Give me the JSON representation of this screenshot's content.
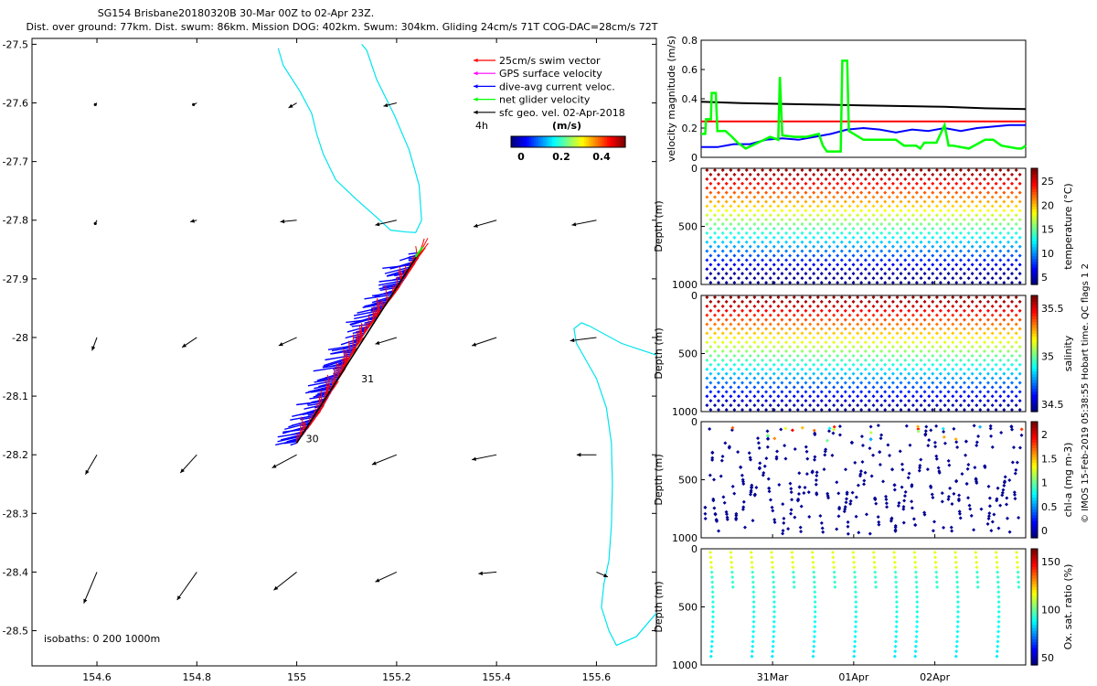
{
  "header": {
    "line1": "SG154 Brisbane20180320B 30-Mar 00Z to 02-Apr 23Z.",
    "line2": "Dist. over ground: 77km. Dist. swum: 86km. Mission DOG: 402km. Swum: 304km. Gliding 24cm/s 71T COG-DAC=28cm/s 72T"
  },
  "side_label": "© IMOS 15-Feb-2019 05:38:55 Hobart time. QC flags 1  2",
  "colors": {
    "swim": "#ff0000",
    "gps": "#ff00ff",
    "dac": "#0000ff",
    "net": "#00ff00",
    "geo": "#000000",
    "coast": "#00e5ee"
  },
  "chart_data": [
    {
      "type": "scatter",
      "name": "track-map",
      "xlim": [
        154.47,
        155.72
      ],
      "ylim": [
        -28.56,
        -27.49
      ],
      "xticks": [
        154.6,
        154.8,
        155,
        155.2,
        155.4,
        155.6
      ],
      "xtick_labels": [
        "154.6",
        "154.8",
        "155",
        "155.2",
        "155.4",
        "155.6"
      ],
      "yticks": [
        -27.5,
        -27.6,
        -27.7,
        -27.8,
        -27.9,
        -28,
        -28.1,
        -28.2,
        -28.3,
        -28.4,
        -28.5
      ],
      "ytick_labels": [
        "-27.5",
        "-27.6",
        "-27.7",
        "-27.8",
        "-27.9",
        "-28",
        "-28.1",
        "-28.2",
        "-28.3",
        "-28.4",
        "-28.5"
      ],
      "legend": [
        {
          "label": "25cm/s swim vector",
          "color": "#ff0000"
        },
        {
          "label": "GPS surface velocity",
          "color": "#ff00ff"
        },
        {
          "label": "dive-avg current veloc.",
          "color": "#0000ff"
        },
        {
          "label": "net glider velocity",
          "color": "#00ff00"
        },
        {
          "label": "sfc geo. vel. 02-Apr-2018",
          "color": "#000000"
        }
      ],
      "legend_extra": "4h",
      "colorbar": {
        "title": "(m/s)",
        "ticks": [
          "0",
          "0.2",
          "0.4"
        ]
      },
      "isobaths_label": "isobaths: 0   200  1000m",
      "track": {
        "start": [
          155.0,
          -28.18
        ],
        "end": [
          155.245,
          -27.855
        ],
        "start_label": "30",
        "mid_label": "31",
        "mid_point": [
          155.12,
          -28.07
        ]
      },
      "geo_vectors": [
        {
          "lon": 154.6,
          "lat": -27.6,
          "u": -0.01,
          "v": -0.01
        },
        {
          "lon": 154.8,
          "lat": -27.6,
          "u": -0.02,
          "v": -0.01
        },
        {
          "lon": 155.0,
          "lat": -27.6,
          "u": -0.05,
          "v": -0.03
        },
        {
          "lon": 155.2,
          "lat": -27.6,
          "u": -0.08,
          "v": -0.02
        },
        {
          "lon": 154.6,
          "lat": -27.8,
          "u": -0.01,
          "v": -0.02
        },
        {
          "lon": 154.8,
          "lat": -27.8,
          "u": -0.04,
          "v": -0.01
        },
        {
          "lon": 155.0,
          "lat": -27.8,
          "u": -0.1,
          "v": -0.01
        },
        {
          "lon": 155.2,
          "lat": -27.8,
          "u": -0.13,
          "v": -0.03
        },
        {
          "lon": 155.4,
          "lat": -27.8,
          "u": -0.14,
          "v": -0.04
        },
        {
          "lon": 155.6,
          "lat": -27.8,
          "u": -0.15,
          "v": -0.03
        },
        {
          "lon": 154.6,
          "lat": -28.0,
          "u": -0.03,
          "v": -0.08
        },
        {
          "lon": 154.8,
          "lat": -28.0,
          "u": -0.09,
          "v": -0.06
        },
        {
          "lon": 155.0,
          "lat": -28.0,
          "u": -0.11,
          "v": -0.05
        },
        {
          "lon": 155.2,
          "lat": -28.0,
          "u": -0.13,
          "v": -0.04
        },
        {
          "lon": 155.4,
          "lat": -28.0,
          "u": -0.15,
          "v": -0.05
        },
        {
          "lon": 155.6,
          "lat": -28.0,
          "u": -0.16,
          "v": -0.02
        },
        {
          "lon": 154.6,
          "lat": -28.2,
          "u": -0.07,
          "v": -0.12
        },
        {
          "lon": 154.8,
          "lat": -28.2,
          "u": -0.1,
          "v": -0.11
        },
        {
          "lon": 155.0,
          "lat": -28.2,
          "u": -0.15,
          "v": -0.08
        },
        {
          "lon": 155.2,
          "lat": -28.2,
          "u": -0.15,
          "v": -0.06
        },
        {
          "lon": 155.4,
          "lat": -28.2,
          "u": -0.15,
          "v": -0.03
        },
        {
          "lon": 155.6,
          "lat": -28.2,
          "u": -0.12,
          "v": 0.0
        },
        {
          "lon": 154.6,
          "lat": -28.4,
          "u": -0.08,
          "v": -0.19
        },
        {
          "lon": 154.8,
          "lat": -28.4,
          "u": -0.12,
          "v": -0.17
        },
        {
          "lon": 155.0,
          "lat": -28.4,
          "u": -0.14,
          "v": -0.11
        },
        {
          "lon": 155.2,
          "lat": -28.4,
          "u": -0.13,
          "v": -0.06
        },
        {
          "lon": 155.4,
          "lat": -28.4,
          "u": -0.11,
          "v": -0.01
        },
        {
          "lon": 155.6,
          "lat": -28.4,
          "u": 0.07,
          "v": -0.03
        }
      ],
      "coastlines": [
        [
          [
            154.963,
            -27.507
          ],
          [
            154.973,
            -27.536
          ],
          [
            155.007,
            -27.581
          ],
          [
            155.03,
            -27.618
          ],
          [
            155.04,
            -27.653
          ],
          [
            155.053,
            -27.687
          ],
          [
            155.078,
            -27.731
          ],
          [
            155.12,
            -27.765
          ],
          [
            155.16,
            -27.795
          ],
          [
            155.188,
            -27.817
          ],
          [
            155.218,
            -27.82
          ],
          [
            155.238,
            -27.821
          ],
          [
            155.25,
            -27.8
          ],
          [
            155.245,
            -27.74
          ],
          [
            155.225,
            -27.68
          ],
          [
            155.195,
            -27.62
          ],
          [
            155.16,
            -27.56
          ],
          [
            155.14,
            -27.51
          ],
          [
            155.13,
            -27.5
          ]
        ],
        [
          [
            155.72,
            -28.03
          ],
          [
            155.65,
            -28.01
          ],
          [
            155.585,
            -27.98
          ],
          [
            155.57,
            -27.975
          ],
          [
            155.555,
            -27.985
          ],
          [
            155.56,
            -28.01
          ],
          [
            155.58,
            -28.04
          ],
          [
            155.6,
            -28.07
          ],
          [
            155.62,
            -28.12
          ],
          [
            155.63,
            -28.18
          ],
          [
            155.632,
            -28.25
          ],
          [
            155.63,
            -28.32
          ],
          [
            155.625,
            -28.38
          ],
          [
            155.615,
            -28.42
          ],
          [
            155.61,
            -28.46
          ],
          [
            155.625,
            -28.5
          ],
          [
            155.64,
            -28.525
          ],
          [
            155.68,
            -28.51
          ],
          [
            155.72,
            -28.47
          ]
        ]
      ]
    },
    {
      "type": "line",
      "name": "velocity-magnitude",
      "ylabel": "velocity magnitude (m/s)",
      "ylim": [
        0,
        0.8
      ],
      "yticks": [
        0,
        0.2,
        0.4,
        0.6,
        0.8
      ],
      "ytick_labels": [
        "0",
        "0.2",
        "0.4",
        "0.6",
        "0.8"
      ],
      "xlim": [
        0,
        4
      ],
      "series": [
        {
          "name": "gliding speed",
          "color": "#ff0000",
          "x": [
            0,
            4
          ],
          "y": [
            0.245,
            0.245
          ]
        },
        {
          "name": "geostrophic",
          "color": "#000000",
          "x": [
            0,
            0.5,
            1,
            1.5,
            2,
            2.5,
            3,
            3.5,
            4
          ],
          "y": [
            0.38,
            0.37,
            0.365,
            0.36,
            0.355,
            0.35,
            0.345,
            0.335,
            0.33
          ]
        },
        {
          "name": "dive-avg current",
          "color": "#0000ff",
          "x": [
            0,
            0.2,
            0.4,
            0.6,
            0.8,
            1.0,
            1.2,
            1.4,
            1.6,
            1.8,
            2.0,
            2.2,
            2.4,
            2.6,
            2.8,
            3.0,
            3.2,
            3.4,
            3.6,
            3.8,
            4.0
          ],
          "y": [
            0.07,
            0.07,
            0.09,
            0.09,
            0.12,
            0.13,
            0.12,
            0.14,
            0.16,
            0.19,
            0.2,
            0.19,
            0.17,
            0.19,
            0.18,
            0.2,
            0.18,
            0.2,
            0.21,
            0.22,
            0.22
          ]
        },
        {
          "name": "net glider velocity",
          "color": "#00ff00",
          "x": [
            0,
            0.05,
            0.06,
            0.12,
            0.13,
            0.18,
            0.2,
            0.22,
            0.3,
            0.38,
            0.45,
            0.55,
            0.7,
            0.85,
            0.95,
            0.97,
            1.0,
            1.15,
            1.3,
            1.45,
            1.5,
            1.55,
            1.65,
            1.72,
            1.74,
            1.8,
            1.82,
            2.0,
            2.2,
            2.4,
            2.5,
            2.6,
            2.65,
            2.7,
            2.75,
            2.9,
            3.0,
            3.05,
            3.1,
            3.3,
            3.5,
            3.6,
            3.7,
            3.9,
            3.95,
            4.0
          ],
          "y": [
            0.16,
            0.16,
            0.26,
            0.26,
            0.44,
            0.44,
            0.18,
            0.18,
            0.18,
            0.14,
            0.1,
            0.06,
            0.1,
            0.14,
            0.12,
            0.55,
            0.15,
            0.14,
            0.14,
            0.16,
            0.08,
            0.04,
            0.04,
            0.04,
            0.66,
            0.66,
            0.18,
            0.12,
            0.12,
            0.12,
            0.08,
            0.08,
            0.08,
            0.06,
            0.1,
            0.1,
            0.22,
            0.08,
            0.08,
            0.06,
            0.12,
            0.12,
            0.08,
            0.06,
            0.06,
            0.08
          ]
        }
      ]
    },
    {
      "type": "scatter",
      "name": "temperature-section",
      "ylabel": "Depth (m)",
      "yticks": [
        "0",
        "500",
        "1000"
      ],
      "colorbar_label": "temperature (°C)",
      "colorbar_ticks": [
        "25",
        "20",
        "15",
        "10",
        "5"
      ],
      "range": [
        4,
        29
      ],
      "profiles": 40,
      "sampling": "continuous"
    },
    {
      "type": "scatter",
      "name": "salinity-section",
      "ylabel": "Depth (m)",
      "yticks": [
        "0",
        "500",
        "1000"
      ],
      "colorbar_label": "salinity",
      "colorbar_ticks": [
        "35.5",
        "35",
        "34.5"
      ],
      "range": [
        34.3,
        35.9
      ],
      "profiles": 40,
      "sampling": "continuous"
    },
    {
      "type": "scatter",
      "name": "chla-section",
      "ylabel": "Depth (m)",
      "yticks": [
        "0",
        "500",
        "1000"
      ],
      "colorbar_label": "chl-a (mg m-3)",
      "colorbar_ticks": [
        "2",
        "1.5",
        "1",
        "0.5",
        "0"
      ],
      "range": [
        0,
        2
      ],
      "profiles": 40,
      "sampling": "sparse"
    },
    {
      "type": "scatter",
      "name": "oxygen-section",
      "ylabel": "Depth (m)",
      "yticks": [
        "0",
        "500",
        "1000"
      ],
      "colorbar_label": "Ox. sat. ratio (%)",
      "colorbar_ticks": [
        "150",
        "100",
        "50"
      ],
      "range": [
        30,
        175
      ],
      "profiles": 16,
      "sampling": "gappy",
      "xtick_labels": [
        "31Mar",
        "01Apr",
        "02Apr"
      ]
    }
  ]
}
